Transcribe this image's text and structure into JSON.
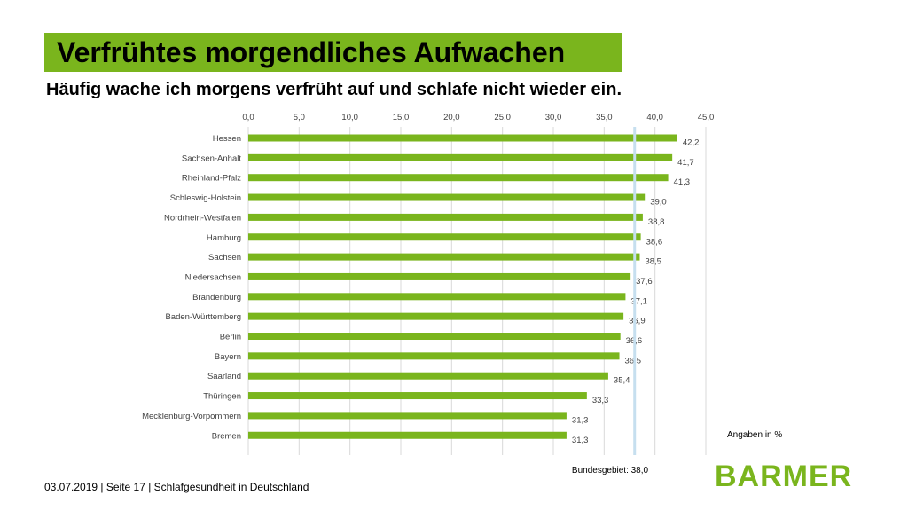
{
  "title": "Verfrühtes morgendliches Aufwachen",
  "subtitle": "Häufig wache ich morgens verfrüht auf und schlafe nicht wieder ein.",
  "note": "Angaben in %",
  "footer": "03.07.2019 | Seite 17 | Schlafgesundheit in Deutschland",
  "logo": "BARMER",
  "colors": {
    "accent": "#7ab51d",
    "bar": "#7ab51d",
    "reference_line": "#c6dfef",
    "grid": "#d9d9d9"
  },
  "chart_data": {
    "type": "bar",
    "orientation": "horizontal",
    "categories": [
      "Hessen",
      "Sachsen-Anhalt",
      "Rheinland-Pfalz",
      "Schleswig-Holstein",
      "Nordrhein-Westfalen",
      "Hamburg",
      "Sachsen",
      "Niedersachsen",
      "Brandenburg",
      "Baden-Württemberg",
      "Berlin",
      "Bayern",
      "Saarland",
      "Thüringen",
      "Mecklenburg-Vorpommern",
      "Bremen"
    ],
    "values": [
      42.2,
      41.7,
      41.3,
      39.0,
      38.8,
      38.6,
      38.5,
      37.6,
      37.1,
      36.9,
      36.6,
      36.5,
      35.4,
      33.3,
      31.3,
      31.3
    ],
    "value_labels": [
      "42,2",
      "41,7",
      "41,3",
      "39,0",
      "38,8",
      "38,6",
      "38,5",
      "37,6",
      "37,1",
      "36,9",
      "36,6",
      "36,5",
      "35,4",
      "33,3",
      "31,3",
      "31,3"
    ],
    "xlim": [
      0,
      45
    ],
    "ticks": [
      0,
      5,
      10,
      15,
      20,
      25,
      30,
      35,
      40,
      45
    ],
    "tick_labels": [
      "0,0",
      "5,0",
      "10,0",
      "15,0",
      "20,0",
      "25,0",
      "30,0",
      "35,0",
      "40,0",
      "45,0"
    ],
    "axis_position": "top",
    "grid": true,
    "reference_line": {
      "value": 38.0,
      "label": "Bundesgebiet: 38,0"
    }
  }
}
